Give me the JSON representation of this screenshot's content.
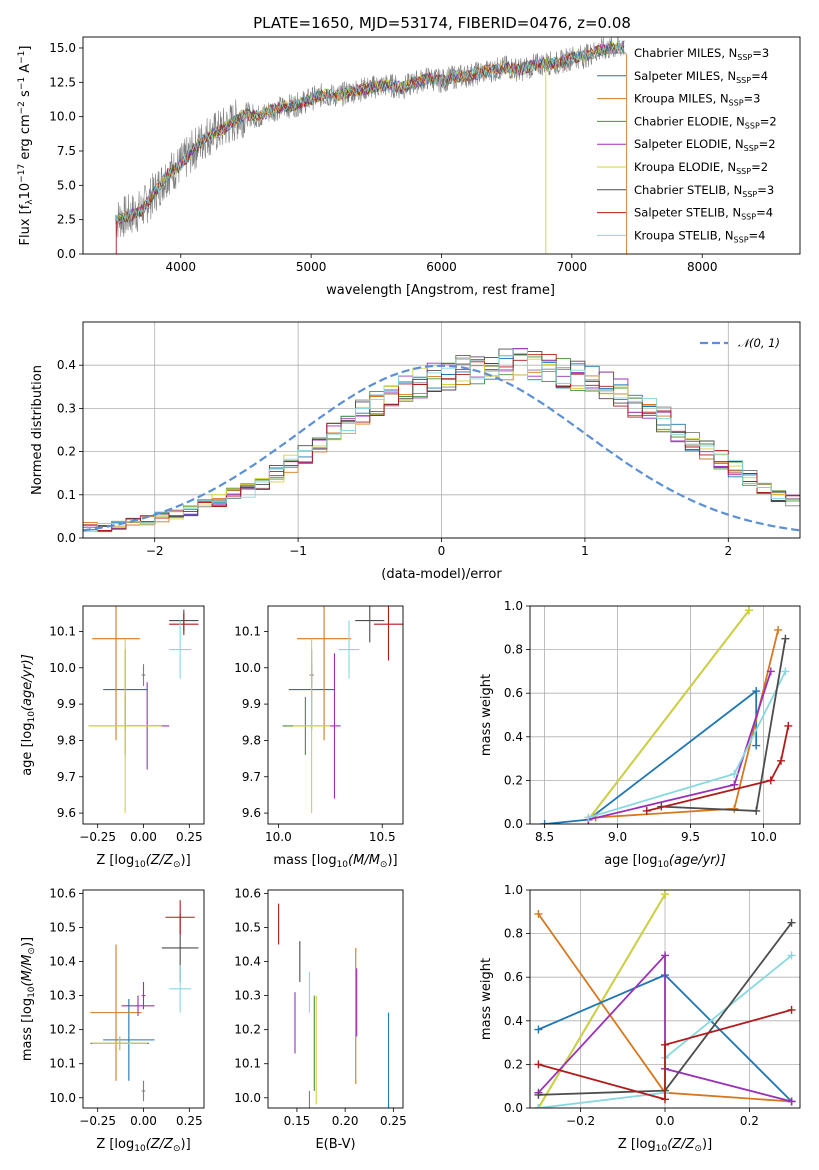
{
  "figure": {
    "title": "PLATE=1650, MJD=53174, FIBERID=0476, z=0.08"
  },
  "colors": {
    "Chabrier MILES": "#7f7f7f",
    "Salpeter MILES": "#1f77b4",
    "Kroupa MILES": "#d6781e",
    "Chabrier ELODIE": "#4a8f3c",
    "Salpeter ELODIE": "#9b30b8",
    "Kroupa ELODIE": "#d4d23c",
    "Chabrier STELIB": "#4d4d4d",
    "Salpeter STELIB": "#b01c1c",
    "Kroupa STELIB": "#88d8e0",
    "data": "#7f7f7f",
    "normal": "#5b8fd6",
    "grid": "#b0b0b0"
  },
  "chart_data": [
    {
      "id": "spectrum",
      "type": "line",
      "xlabel": "wavelength [Angstrom, rest frame]",
      "ylabel": "Flux [f",
      "ylabel_sub": "λ",
      "ylabel_rest": "10",
      "ylabel_exp": "−17",
      "ylabel_unit": " erg cm",
      "ylabel_unit_exp": "−2",
      "ylabel_unit2": " s",
      "ylabel_unit2_exp": "−1",
      "ylabel_unit3": " A",
      "ylabel_unit3_exp": "−1",
      "ylabel_end": "]",
      "xlim": [
        3250,
        8750
      ],
      "ylim": [
        0,
        15.8
      ],
      "xticks": [
        4000,
        5000,
        6000,
        7000,
        8000
      ],
      "yticks": [
        0.0,
        2.5,
        5.0,
        7.5,
        10.0,
        12.5,
        15.0
      ],
      "x": [
        3500,
        3600,
        3700,
        3800,
        3900,
        4000,
        4100,
        4200,
        4300,
        4400,
        4500,
        4600,
        4700,
        4800,
        4900,
        5000,
        5100,
        5200,
        5300,
        5400,
        5500,
        5600,
        5700,
        5800,
        5900,
        6000,
        6100,
        6200,
        6300,
        6400,
        6500,
        6600,
        6700,
        6800,
        6900,
        7000,
        7100,
        7200,
        7300,
        7400
      ],
      "flux": [
        2.5,
        2.8,
        3.2,
        4.5,
        5.8,
        6.5,
        7.6,
        8.6,
        9.0,
        9.6,
        10.2,
        10.0,
        10.5,
        10.7,
        10.9,
        11.3,
        11.6,
        11.5,
        11.8,
        12.0,
        12.2,
        12.3,
        12.1,
        12.5,
        12.8,
        12.6,
        12.9,
        13.0,
        13.2,
        13.4,
        13.6,
        13.4,
        13.7,
        13.9,
        13.9,
        14.3,
        14.4,
        14.8,
        15.0,
        15.1
      ],
      "series": [
        {
          "name": "Chabrier MILES, N",
          "sub": "SSP",
          "tail": "=3"
        },
        {
          "name": "Salpeter MILES, N",
          "sub": "SSP",
          "tail": "=4"
        },
        {
          "name": "Kroupa MILES, N",
          "sub": "SSP",
          "tail": "=3"
        },
        {
          "name": "Chabrier ELODIE, N",
          "sub": "SSP",
          "tail": "=2"
        },
        {
          "name": "Salpeter ELODIE, N",
          "sub": "SSP",
          "tail": "=2"
        },
        {
          "name": "Kroupa ELODIE, N",
          "sub": "SSP",
          "tail": "=2"
        },
        {
          "name": "Chabrier STELIB, N",
          "sub": "SSP",
          "tail": "=3"
        },
        {
          "name": "Salpeter STELIB, N",
          "sub": "SSP",
          "tail": "=4"
        },
        {
          "name": "Kroupa STELIB, N",
          "sub": "SSP",
          "tail": "=4"
        }
      ],
      "legend": "top-right",
      "grid": false
    },
    {
      "id": "residuals",
      "type": "line",
      "xlabel": "(data-model)/error",
      "ylabel": "Normed distribution",
      "xlim": [
        -2.5,
        2.5
      ],
      "ylim": [
        0,
        0.5
      ],
      "xticks": [
        -2,
        -1,
        0,
        1,
        2
      ],
      "xtick_labels": [
        "−2",
        "−1",
        "0",
        "1",
        "2"
      ],
      "yticks": [
        0.0,
        0.1,
        0.2,
        0.3,
        0.4
      ],
      "ytick_labels": [
        "0.0",
        "0.1",
        "0.2",
        "0.3",
        "0.4"
      ],
      "bin_width": 0.1,
      "bin_start": -2.5,
      "histogram_base": [
        0.025,
        0.025,
        0.03,
        0.035,
        0.04,
        0.05,
        0.055,
        0.065,
        0.075,
        0.085,
        0.1,
        0.11,
        0.13,
        0.15,
        0.17,
        0.195,
        0.215,
        0.24,
        0.26,
        0.29,
        0.31,
        0.33,
        0.345,
        0.36,
        0.37,
        0.38,
        0.385,
        0.39,
        0.395,
        0.4,
        0.405,
        0.395,
        0.39,
        0.385,
        0.375,
        0.365,
        0.35,
        0.335,
        0.31,
        0.295,
        0.275,
        0.25,
        0.225,
        0.205,
        0.18,
        0.16,
        0.14,
        0.12,
        0.1,
        0.09
      ],
      "normal_curve": {
        "name": "𝒩(0, 1)",
        "mu": 0,
        "sigma": 1
      },
      "legend": "top-right",
      "grid": true
    },
    {
      "id": "age_vs_Z",
      "type": "scatter",
      "xlabel": "Z [log",
      "xlabel_sub": "10",
      "xlabel_rest": "(Z/Z",
      "xlabel_sun": "⊙",
      "xlabel_end": ")]",
      "ylabel": "age  [log",
      "ylabel_sub": "10",
      "ylabel_rest": "(age/yr)]",
      "xlim": [
        -0.33,
        0.33
      ],
      "ylim": [
        9.57,
        10.17
      ],
      "xticks": [
        -0.25,
        0.0,
        0.25
      ],
      "xtick_labels": [
        "−0.25",
        "0.00",
        "0.25"
      ],
      "yticks": [
        9.6,
        9.7,
        9.8,
        9.9,
        10.0,
        10.1
      ],
      "points": [
        {
          "series": "Chabrier MILES",
          "x": 0.0,
          "y": 9.98,
          "xerr": 0.01,
          "yerr": 0.03
        },
        {
          "series": "Salpeter MILES",
          "x": -0.1,
          "y": 9.94,
          "xerr": 0.12,
          "yerr": 0.11
        },
        {
          "series": "Kroupa MILES",
          "x": -0.15,
          "y": 10.08,
          "xerr": 0.13,
          "yerr": 0.28
        },
        {
          "series": "Chabrier ELODIE",
          "x": -0.1,
          "y": 9.84,
          "xerr": 0.2,
          "yerr": 0.08
        },
        {
          "series": "Salpeter ELODIE",
          "x": 0.02,
          "y": 9.84,
          "xerr": 0.12,
          "yerr": 0.12
        },
        {
          "series": "Kroupa ELODIE",
          "x": -0.1,
          "y": 9.84,
          "xerr": 0.2,
          "yerr": 0.24
        },
        {
          "series": "Chabrier STELIB",
          "x": 0.22,
          "y": 10.13,
          "xerr": 0.08,
          "yerr": 0.03
        },
        {
          "series": "Salpeter STELIB",
          "x": 0.22,
          "y": 10.12,
          "xerr": 0.08,
          "yerr": 0.03
        },
        {
          "series": "Kroupa STELIB",
          "x": 0.2,
          "y": 10.05,
          "xerr": 0.06,
          "yerr": 0.08
        }
      ]
    },
    {
      "id": "age_vs_mass",
      "type": "scatter",
      "xlabel": "mass [log",
      "xlabel_sub": "10",
      "xlabel_rest": "(M/M",
      "xlabel_sun": "⊙",
      "xlabel_end": ")]",
      "xlim": [
        9.95,
        10.6
      ],
      "ylim": [
        9.57,
        10.17
      ],
      "xticks": [
        10.0,
        10.5
      ],
      "xtick_labels": [
        "10.0",
        "10.5"
      ],
      "yticks": [
        9.6,
        9.7,
        9.8,
        9.9,
        10.0,
        10.1
      ],
      "points": [
        {
          "series": "Chabrier MILES",
          "x": 10.16,
          "y": 9.98,
          "xerr": 0.01,
          "yerr": 0.03
        },
        {
          "series": "Salpeter MILES",
          "x": 10.16,
          "y": 9.94,
          "xerr": 0.11,
          "yerr": 0.11
        },
        {
          "series": "Kroupa MILES",
          "x": 10.22,
          "y": 10.08,
          "xerr": 0.13,
          "yerr": 0.28
        },
        {
          "series": "Chabrier ELODIE",
          "x": 10.13,
          "y": 9.84,
          "xerr": 0.11,
          "yerr": 0.08
        },
        {
          "series": "Salpeter ELODIE",
          "x": 10.27,
          "y": 9.84,
          "xerr": 0.03,
          "yerr": 0.2
        },
        {
          "series": "Kroupa ELODIE",
          "x": 10.16,
          "y": 9.84,
          "xerr": 0.09,
          "yerr": 0.24
        },
        {
          "series": "Chabrier STELIB",
          "x": 10.44,
          "y": 10.13,
          "xerr": 0.07,
          "yerr": 0.06
        },
        {
          "series": "Salpeter STELIB",
          "x": 10.53,
          "y": 10.12,
          "xerr": 0.07,
          "yerr": 0.1
        },
        {
          "series": "Kroupa STELIB",
          "x": 10.34,
          "y": 10.05,
          "xerr": 0.05,
          "yerr": 0.08
        }
      ]
    },
    {
      "id": "weight_vs_age",
      "type": "line",
      "xlabel": "age  [log",
      "xlabel_sub": "10",
      "xlabel_rest": "(age/yr)]",
      "ylabel": "mass weight",
      "xlim": [
        8.4,
        10.25
      ],
      "ylim": [
        0,
        1
      ],
      "xticks": [
        8.5,
        9.0,
        9.5,
        10.0
      ],
      "xtick_labels": [
        "8.5",
        "9.0",
        "9.5",
        "10.0"
      ],
      "yticks": [
        0.0,
        0.2,
        0.4,
        0.6,
        0.8,
        1.0
      ],
      "series": [
        {
          "name": "Chabrier ELODIE",
          "x": [
            8.8,
            9.9
          ],
          "y": [
            0.02,
            0.98
          ]
        },
        {
          "name": "Kroupa ELODIE",
          "x": [
            8.8,
            9.9
          ],
          "y": [
            0.02,
            0.98
          ]
        },
        {
          "name": "Salpeter MILES",
          "x": [
            8.5,
            8.8,
            9.95,
            9.95
          ],
          "y": [
            0.0,
            0.02,
            0.61,
            0.36
          ]
        },
        {
          "name": "Kroupa MILES",
          "x": [
            8.85,
            9.8,
            10.1
          ],
          "y": [
            0.03,
            0.07,
            0.89
          ]
        },
        {
          "name": "Salpeter ELODIE",
          "x": [
            8.8,
            9.8,
            10.05
          ],
          "y": [
            0.02,
            0.18,
            0.7
          ]
        },
        {
          "name": "Kroupa STELIB",
          "x": [
            8.8,
            9.8,
            10.15
          ],
          "y": [
            0.03,
            0.23,
            0.7
          ]
        },
        {
          "name": "Chabrier STELIB",
          "x": [
            9.3,
            9.95,
            10.15
          ],
          "y": [
            0.08,
            0.06,
            0.85
          ]
        },
        {
          "name": "Salpeter STELIB",
          "x": [
            9.2,
            10.05,
            10.12,
            10.17
          ],
          "y": [
            0.06,
            0.2,
            0.29,
            0.45
          ]
        }
      ],
      "grid": true
    },
    {
      "id": "mass_vs_Z",
      "type": "scatter",
      "xlabel": "Z [log",
      "xlabel_sub": "10",
      "xlabel_rest": "(Z/Z",
      "xlabel_sun": "⊙",
      "xlabel_end": ")]",
      "ylabel": "mass [log",
      "ylabel_sub": "10",
      "ylabel_rest": "(M/M",
      "ylabel_sun": "⊙",
      "ylabel_end": ")]",
      "xlim": [
        -0.33,
        0.33
      ],
      "ylim": [
        9.97,
        10.61
      ],
      "xticks": [
        -0.25,
        0.0,
        0.25
      ],
      "xtick_labels": [
        "−0.25",
        "0.00",
        "0.25"
      ],
      "yticks": [
        10.0,
        10.1,
        10.2,
        10.3,
        10.4,
        10.5,
        10.6
      ],
      "points": [
        {
          "series": "Chabrier MILES",
          "x": 0.0,
          "y": 10.02,
          "xerr": 0.01,
          "yerr": 0.03
        },
        {
          "series": "Salpeter MILES",
          "x": -0.08,
          "y": 10.17,
          "xerr": 0.14,
          "yerr": 0.12
        },
        {
          "series": "Kroupa MILES",
          "x": -0.15,
          "y": 10.25,
          "xerr": 0.14,
          "yerr": 0.2
        },
        {
          "series": "Chabrier ELODIE",
          "x": -0.13,
          "y": 10.16,
          "xerr": 0.16,
          "yerr": 0.02
        },
        {
          "series": "Salpeter ELODIE",
          "x": -0.03,
          "y": 10.27,
          "xerr": 0.09,
          "yerr": 0.03
        },
        {
          "series": "Kroupa ELODIE",
          "x": -0.13,
          "y": 10.16,
          "xerr": 0.15,
          "yerr": 0.02
        },
        {
          "series": "Chabrier STELIB",
          "x": 0.2,
          "y": 10.44,
          "xerr": 0.1,
          "yerr": 0.1
        },
        {
          "series": "Salpeter STELIB",
          "x": 0.2,
          "y": 10.53,
          "xerr": 0.08,
          "yerr": 0.05
        },
        {
          "series": "Kroupa STELIB",
          "x": 0.2,
          "y": 10.32,
          "xerr": 0.06,
          "yerr": 0.07
        },
        {
          "series": "Salpeter ELODIE",
          "x": 0.0,
          "y": 10.3,
          "xerr": 0.01,
          "yerr": 0.04
        }
      ]
    },
    {
      "id": "mass_vs_EBV",
      "type": "scatter",
      "xlabel": "E(B-V)",
      "xlim": [
        0.12,
        0.26
      ],
      "ylim": [
        9.97,
        10.61
      ],
      "xticks": [
        0.15,
        0.2,
        0.25
      ],
      "xtick_labels": [
        "0.15",
        "0.20",
        "0.25"
      ],
      "yticks": [
        10.0,
        10.1,
        10.2,
        10.3,
        10.4,
        10.5,
        10.6
      ],
      "points": [
        {
          "series": "Salpeter MILES",
          "x": 0.245,
          "y": 10.09,
          "xerr": 0.0,
          "yerr": 0.16
        },
        {
          "series": "Kroupa MILES",
          "x": 0.211,
          "y": 10.24,
          "xerr": 0.0,
          "yerr": 0.2
        },
        {
          "series": "Chabrier ELODIE",
          "x": 0.168,
          "y": 10.16,
          "xerr": 0.0,
          "yerr": 0.14
        },
        {
          "series": "Salpeter ELODIE",
          "x": 0.148,
          "y": 10.22,
          "xerr": 0.0,
          "yerr": 0.09
        },
        {
          "series": "Kroupa ELODIE",
          "x": 0.17,
          "y": 10.14,
          "xerr": 0.0,
          "yerr": 0.16
        },
        {
          "series": "Chabrier STELIB",
          "x": 0.153,
          "y": 10.4,
          "xerr": 0.0,
          "yerr": 0.06
        },
        {
          "series": "Salpeter STELIB",
          "x": 0.131,
          "y": 10.51,
          "xerr": 0.0,
          "yerr": 0.06
        },
        {
          "series": "Kroupa STELIB",
          "x": 0.163,
          "y": 10.31,
          "xerr": 0.0,
          "yerr": 0.06
        },
        {
          "series": "Salpeter ELODIE",
          "x": 0.212,
          "y": 10.28,
          "xerr": 0.0,
          "yerr": 0.1
        },
        {
          "series": "Chabrier MILES",
          "x": 0.163,
          "y": 9.99,
          "xerr": 0.0,
          "yerr": 0.03
        }
      ]
    },
    {
      "id": "weight_vs_Z",
      "type": "line",
      "xlabel": "Z [log",
      "xlabel_sub": "10",
      "xlabel_rest": "(Z/Z",
      "xlabel_sun": "⊙",
      "xlabel_end": ")]",
      "ylabel": "mass weight",
      "xlim": [
        -0.32,
        0.32
      ],
      "ylim": [
        0,
        1
      ],
      "xticks": [
        -0.2,
        0.0,
        0.2
      ],
      "xtick_labels": [
        "−0.2",
        "0.0",
        "0.2"
      ],
      "yticks": [
        0.0,
        0.2,
        0.4,
        0.6,
        0.8,
        1.0
      ],
      "series": [
        {
          "name": "Chabrier ELODIE",
          "x": [
            -0.3,
            0.0
          ],
          "y": [
            0.0,
            0.98
          ]
        },
        {
          "name": "Kroupa ELODIE",
          "x": [
            -0.3,
            0.0
          ],
          "y": [
            0.0,
            0.98
          ]
        },
        {
          "name": "Kroupa MILES",
          "x": [
            -0.3,
            0.0,
            0.3
          ],
          "y": [
            0.89,
            0.07,
            0.03
          ]
        },
        {
          "name": "Salpeter MILES",
          "x": [
            -0.3,
            0.0,
            0.3
          ],
          "y": [
            0.36,
            0.61,
            0.03
          ]
        },
        {
          "name": "Salpeter ELODIE",
          "x": [
            -0.3,
            0.0,
            0.0,
            0.3
          ],
          "y": [
            0.07,
            0.7,
            0.18,
            0.03
          ]
        },
        {
          "name": "Kroupa STELIB",
          "x": [
            -0.3,
            0.0,
            0.0,
            0.3
          ],
          "y": [
            0.0,
            0.07,
            0.23,
            0.7
          ]
        },
        {
          "name": "Chabrier STELIB",
          "x": [
            -0.3,
            0.0,
            0.3
          ],
          "y": [
            0.06,
            0.08,
            0.85
          ]
        },
        {
          "name": "Salpeter STELIB",
          "x": [
            -0.3,
            0.0,
            0.0,
            0.3
          ],
          "y": [
            0.2,
            0.04,
            0.29,
            0.45
          ]
        }
      ],
      "grid": true
    }
  ]
}
